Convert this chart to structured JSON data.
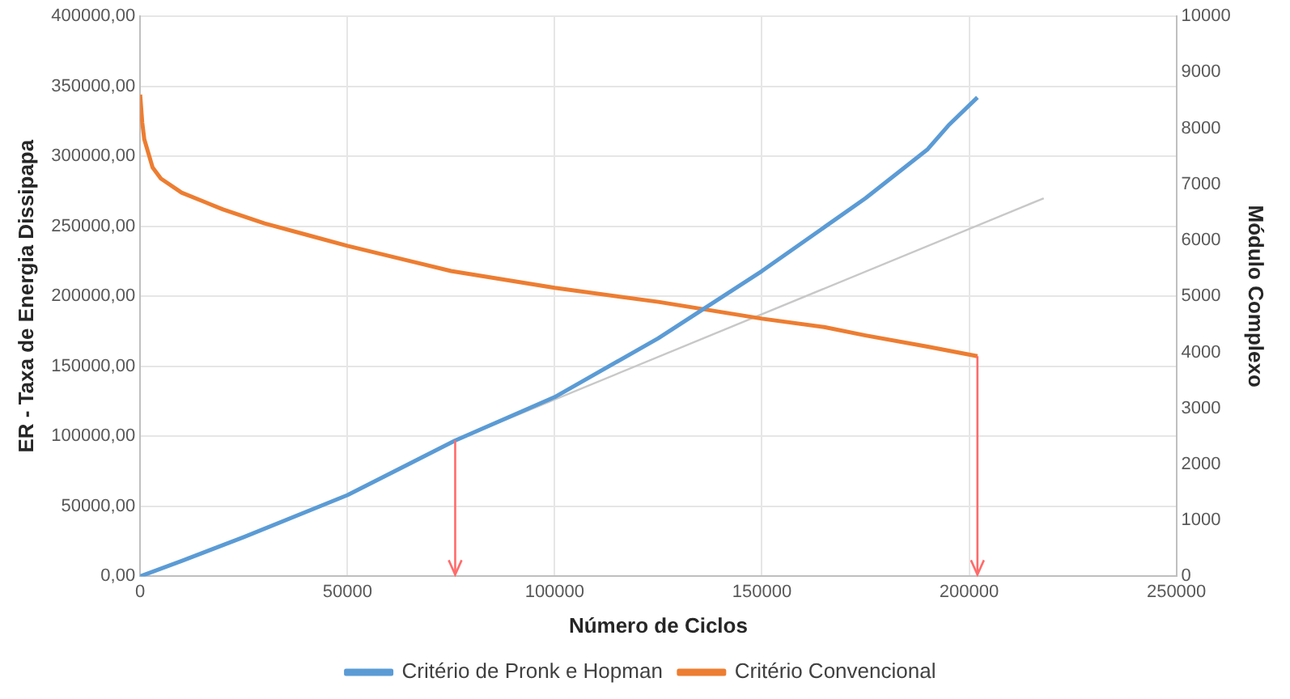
{
  "chart_data": {
    "type": "line",
    "xlabel": "Número de Ciclos",
    "ylabel": "ER - Taxa de Energia Dissipapa",
    "y2label": "Módulo Complexo",
    "xlim": [
      0,
      250000
    ],
    "xticks": [
      0,
      50000,
      100000,
      150000,
      200000,
      250000
    ],
    "ylim": [
      0,
      400000
    ],
    "yticks": [
      {
        "value": 0,
        "label": "0,00"
      },
      {
        "value": 50000,
        "label": "50000,00"
      },
      {
        "value": 100000,
        "label": "100000,00"
      },
      {
        "value": 150000,
        "label": "150000,00"
      },
      {
        "value": 200000,
        "label": "200000,00"
      },
      {
        "value": 250000,
        "label": "250000,00"
      },
      {
        "value": 300000,
        "label": "300000,00"
      },
      {
        "value": 350000,
        "label": "350000,00"
      },
      {
        "value": 400000,
        "label": "400000,00"
      }
    ],
    "y2lim": [
      0,
      10000
    ],
    "y2ticks": [
      0,
      1000,
      2000,
      3000,
      4000,
      5000,
      6000,
      7000,
      8000,
      9000,
      10000
    ],
    "grid": true,
    "legend": "bottom",
    "marker": "none",
    "line_style": "solid",
    "series": [
      {
        "name": "Critério de Pronk e Hopman",
        "color": "#5b9bd5",
        "x": [
          0,
          10000,
          25000,
          50000,
          76000,
          100000,
          125000,
          150000,
          175000,
          190000,
          195000,
          202000
        ],
        "values": [
          0,
          11000,
          28000,
          58000,
          97000,
          128000,
          170000,
          218000,
          270000,
          305000,
          322000,
          342000
        ]
      },
      {
        "name": "Critério Convencional",
        "color": "#ed7d31",
        "axis": "y2",
        "x": [
          0,
          500,
          1000,
          3000,
          5000,
          10000,
          20000,
          30000,
          40000,
          50000,
          75000,
          100000,
          125000,
          150000,
          165000,
          175000,
          190000,
          202000
        ],
        "values": [
          8600,
          8100,
          7800,
          7300,
          7100,
          6850,
          6550,
          6300,
          6100,
          5900,
          5450,
          5150,
          4900,
          4600,
          4450,
          4300,
          4100,
          3930
        ]
      },
      {
        "color": "#c8c8c8",
        "x": [
          76000,
          218000
        ],
        "values": [
          97000,
          270000
        ]
      }
    ],
    "ref_lines": [
      {
        "axis": "x",
        "value": 76000,
        "color": "#ff6b6b"
      },
      {
        "axis": "x",
        "value": 202000,
        "color": "#ff6b6b"
      }
    ]
  }
}
